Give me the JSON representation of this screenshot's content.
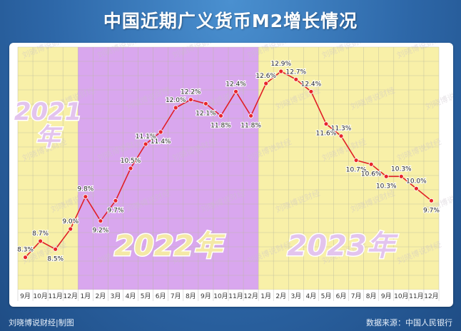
{
  "title": "中国近期广义货币M2增长情况",
  "footer": {
    "left": "刘晓博说财经|制图",
    "right": "数据来源：中国人民银行"
  },
  "watermark": "刘晓博说财经",
  "chart_data": {
    "type": "line",
    "title": "中国近期广义货币M2增长情况",
    "xlabel": "",
    "ylabel": "",
    "ylim": [
      7.5,
      13.5
    ],
    "grid": true,
    "categories": [
      "9月",
      "10月",
      "11月",
      "12月",
      "1月",
      "2月",
      "3月",
      "4月",
      "5月",
      "6月",
      "7月",
      "8月",
      "9月",
      "10月",
      "11月",
      "12月",
      "1月",
      "2月",
      "3月",
      "4月",
      "5月",
      "6月",
      "7月",
      "8月",
      "9月",
      "10月",
      "11月",
      "12月"
    ],
    "values": [
      8.3,
      8.7,
      8.5,
      9.0,
      9.8,
      9.2,
      9.7,
      10.5,
      11.1,
      11.4,
      12.0,
      12.2,
      12.1,
      11.8,
      12.4,
      11.8,
      12.6,
      12.9,
      12.7,
      12.4,
      11.6,
      11.3,
      10.7,
      10.6,
      10.3,
      10.3,
      10.0,
      9.7
    ],
    "data_labels": [
      "8.3%",
      "8.7%",
      "8.5%",
      "9.0%",
      "9.8%",
      "9.2%",
      "9.7%",
      "10.5%",
      "11.1%",
      "11.4%",
      "12.0%",
      "12.2%",
      "12.1%",
      "11.8%",
      "12.4%",
      "11.8%",
      "12.6%",
      "12.9%",
      "12.7%",
      "12.4%",
      "11.6%",
      "11.3%",
      "10.7%",
      "10.6%",
      "10.3%",
      "10.3%",
      "10.0%",
      "9.7%"
    ],
    "label_above": [
      true,
      true,
      false,
      true,
      true,
      false,
      false,
      true,
      true,
      false,
      true,
      true,
      false,
      false,
      true,
      false,
      true,
      true,
      true,
      true,
      false,
      true,
      false,
      false,
      false,
      true,
      true,
      false
    ],
    "periods": [
      {
        "label": "2021年",
        "start": 0,
        "end": 3,
        "color": "#f8f0a8",
        "label_color": "#e3c4ee"
      },
      {
        "label": "2022年",
        "start": 4,
        "end": 15,
        "color": "#d9a7ee",
        "label_color": "#f4e9a6"
      },
      {
        "label": "2023年",
        "start": 16,
        "end": 27,
        "color": "#f8f0a8",
        "label_color": "#e3c4ee"
      }
    ],
    "line_color": "#e01f26",
    "marker_color": "#e8262b"
  }
}
